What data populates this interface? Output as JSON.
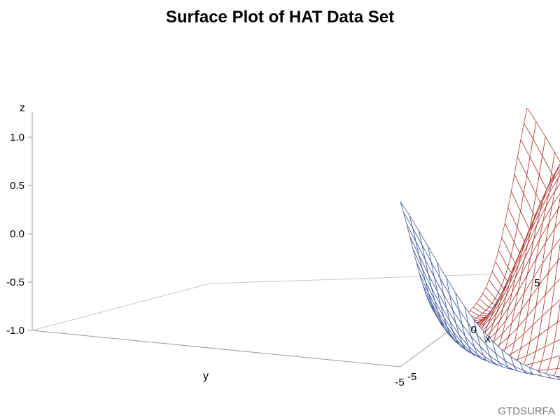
{
  "chart_data": {
    "type": "surface",
    "title": "Surface Plot of HAT Data Set",
    "footnote": "GTDSURFA",
    "function": "z = sin(sqrt(x^2 + y^2))",
    "x": {
      "label": "x",
      "min": -5,
      "max": 5,
      "ticks": [
        {
          "value": -5,
          "label": "-5"
        },
        {
          "value": 0,
          "label": "0"
        },
        {
          "value": 5,
          "label": "5"
        }
      ]
    },
    "y": {
      "label": "y",
      "min": -5,
      "max": 5,
      "ticks": [
        {
          "value": 5,
          "label": "5"
        },
        {
          "value": 0,
          "label": "0"
        },
        {
          "value": -5,
          "label": "-5"
        }
      ]
    },
    "z": {
      "label": "z",
      "min": -1.0,
      "max": 1.2,
      "ticks": [
        {
          "value": -1.0,
          "label": "-1.0"
        },
        {
          "value": -0.5,
          "label": "-0.5"
        },
        {
          "value": 0.0,
          "label": "0.0"
        },
        {
          "value": 0.5,
          "label": "0.5"
        },
        {
          "value": 1.0,
          "label": "1.0"
        }
      ]
    },
    "grid": {
      "x_lines": 41,
      "y_lines": 41
    },
    "colors": {
      "top_surface": "#3f5a9e",
      "bottom_surface": "#b23a2f",
      "axes": "#9a9a9a"
    }
  }
}
